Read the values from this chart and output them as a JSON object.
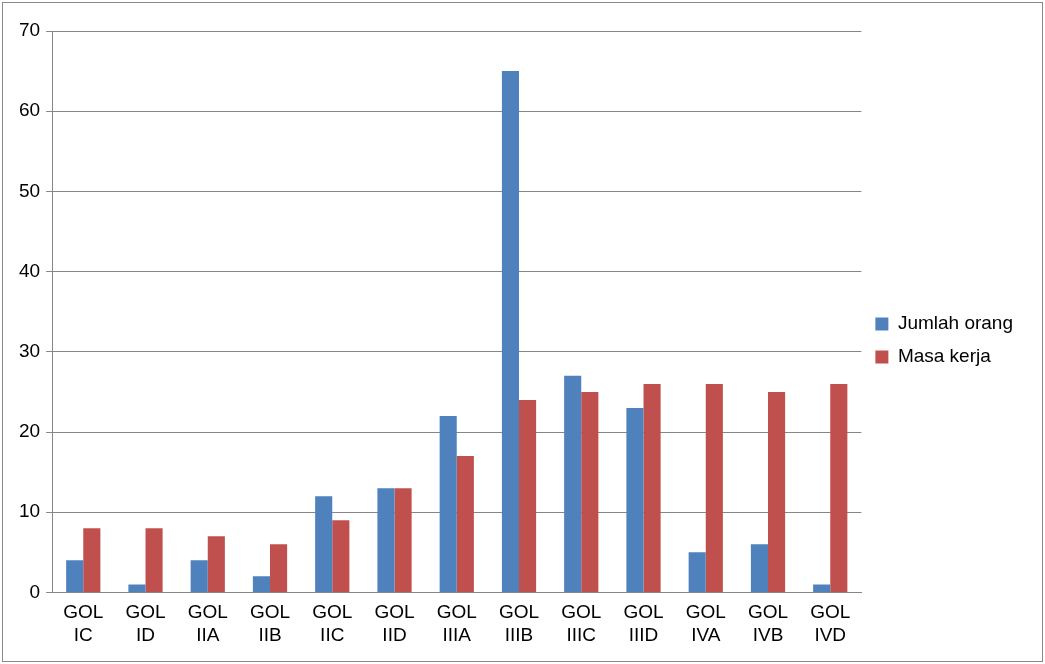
{
  "chart_data": {
    "type": "bar",
    "categories": [
      "GOL IC",
      "GOL ID",
      "GOL IIA",
      "GOL IIB",
      "GOL IIC",
      "GOL IID",
      "GOL IIIA",
      "GOL IIIB",
      "GOL IIIC",
      "GOL IIID",
      "GOL IVA",
      "GOL IVB",
      "GOL IVD"
    ],
    "series": [
      {
        "name": "Jumlah orang",
        "color": "#4f81bd",
        "values": [
          4,
          1,
          4,
          2,
          12,
          13,
          22,
          65,
          27,
          23,
          5,
          6,
          1
        ]
      },
      {
        "name": "Masa kerja",
        "color": "#c0504d",
        "values": [
          8,
          8,
          7,
          6,
          9,
          13,
          17,
          24,
          25,
          26,
          26,
          25,
          26
        ]
      }
    ],
    "ylim": [
      0,
      70
    ],
    "yticks": [
      0,
      10,
      20,
      30,
      40,
      50,
      60,
      70
    ],
    "grid": "y",
    "legend": "right"
  }
}
